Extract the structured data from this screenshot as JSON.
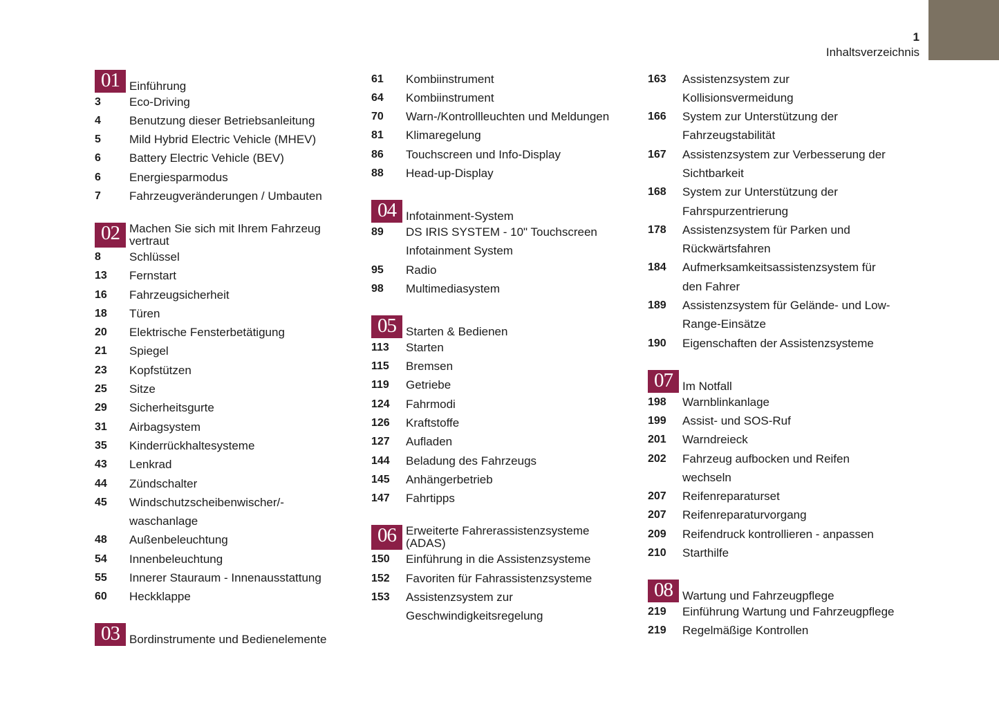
{
  "header": {
    "page_number": "1",
    "title": "Inhaltsverzeichnis",
    "tab_color": "#7c7262"
  },
  "accent_color": "#8b1f47",
  "columns": [
    [
      {
        "number": "01",
        "title": "Einführung",
        "items": [
          {
            "page": "3",
            "text": "Eco-Driving"
          },
          {
            "page": "4",
            "text": "Benutzung dieser Betriebsanleitung"
          },
          {
            "page": "5",
            "text": "Mild Hybrid Electric Vehicle (MHEV)"
          },
          {
            "page": "6",
            "text": "Battery Electric Vehicle (BEV)"
          },
          {
            "page": "6",
            "text": "Energiesparmodus"
          },
          {
            "page": "7",
            "text": "Fahrzeugveränderungen / Umbauten"
          }
        ]
      },
      {
        "number": "02",
        "title": "Machen Sie sich mit Ihrem Fahrzeug\nvertraut",
        "items": [
          {
            "page": "8",
            "text": "Schlüssel"
          },
          {
            "page": "13",
            "text": "Fernstart"
          },
          {
            "page": "16",
            "text": "Fahrzeugsicherheit"
          },
          {
            "page": "18",
            "text": "Türen"
          },
          {
            "page": "20",
            "text": "Elektrische Fensterbetätigung"
          },
          {
            "page": "21",
            "text": "Spiegel"
          },
          {
            "page": "23",
            "text": "Kopfstützen"
          },
          {
            "page": "25",
            "text": "Sitze"
          },
          {
            "page": "29",
            "text": "Sicherheitsgurte"
          },
          {
            "page": "31",
            "text": "Airbagsystem"
          },
          {
            "page": "35",
            "text": "Kinderrückhaltesysteme"
          },
          {
            "page": "43",
            "text": "Lenkrad"
          },
          {
            "page": "44",
            "text": "Zündschalter"
          },
          {
            "page": "45",
            "text": "Windschutzscheibenwischer/-\nwaschanlage"
          },
          {
            "page": "48",
            "text": "Außenbeleuchtung"
          },
          {
            "page": "54",
            "text": "Innenbeleuchtung"
          },
          {
            "page": "55",
            "text": "Innerer Stauraum - Innenausstattung"
          },
          {
            "page": "60",
            "text": "Heckklappe"
          }
        ]
      },
      {
        "number": "03",
        "title": "Bordinstrumente und Bedienelemente",
        "items": []
      }
    ],
    [
      {
        "number": "",
        "title": "",
        "items": [
          {
            "page": "61",
            "text": "Kombiinstrument"
          },
          {
            "page": "64",
            "text": "Kombiinstrument"
          },
          {
            "page": "70",
            "text": "Warn-/Kontrollleuchten und Meldungen"
          },
          {
            "page": "81",
            "text": "Klimaregelung"
          },
          {
            "page": "86",
            "text": "Touchscreen und Info-Display"
          },
          {
            "page": "88",
            "text": "Head-up-Display"
          }
        ]
      },
      {
        "number": "04",
        "title": "Infotainment-System",
        "items": [
          {
            "page": "89",
            "text": "DS IRIS SYSTEM - 10\" Touchscreen\nInfotainment System"
          },
          {
            "page": "95",
            "text": "Radio"
          },
          {
            "page": "98",
            "text": "Multimediasystem"
          }
        ]
      },
      {
        "number": "05",
        "title": "Starten & Bedienen",
        "items": [
          {
            "page": "113",
            "text": "Starten"
          },
          {
            "page": "115",
            "text": "Bremsen"
          },
          {
            "page": "119",
            "text": "Getriebe"
          },
          {
            "page": "124",
            "text": "Fahrmodi"
          },
          {
            "page": "126",
            "text": "Kraftstoffe"
          },
          {
            "page": "127",
            "text": "Aufladen"
          },
          {
            "page": "144",
            "text": "Beladung des Fahrzeugs"
          },
          {
            "page": "145",
            "text": "Anhängerbetrieb"
          },
          {
            "page": "147",
            "text": "Fahrtipps"
          }
        ]
      },
      {
        "number": "06",
        "title": "Erweiterte Fahrerassistenzsysteme\n(ADAS)",
        "items": [
          {
            "page": "150",
            "text": "Einführung in die Assistenzsysteme"
          },
          {
            "page": "152",
            "text": "Favoriten für Fahrassistenzsysteme"
          },
          {
            "page": "153",
            "text": "Assistenzsystem zur\nGeschwindigkeitsregelung"
          }
        ]
      }
    ],
    [
      {
        "number": "",
        "title": "",
        "items": [
          {
            "page": "163",
            "text": "Assistenzsystem zur\nKollisionsvermeidung"
          },
          {
            "page": "166",
            "text": "System zur Unterstützung der\nFahrzeugstabilität"
          },
          {
            "page": "167",
            "text": "Assistenzsystem zur Verbesserung der\nSichtbarkeit"
          },
          {
            "page": "168",
            "text": "System zur Unterstützung der\nFahrspurzentrierung"
          },
          {
            "page": "178",
            "text": "Assistenzsystem für Parken und\nRückwärtsfahren"
          },
          {
            "page": "184",
            "text": "Aufmerksamkeitsassistenzsystem für\nden Fahrer"
          },
          {
            "page": "189",
            "text": "Assistenzsystem für Gelände- und Low-\nRange-Einsätze"
          },
          {
            "page": "190",
            "text": "Eigenschaften der Assistenzsysteme"
          }
        ]
      },
      {
        "number": "07",
        "title": "Im Notfall",
        "items": [
          {
            "page": "198",
            "text": "Warnblinkanlage"
          },
          {
            "page": "199",
            "text": "Assist- und SOS-Ruf"
          },
          {
            "page": "201",
            "text": "Warndreieck"
          },
          {
            "page": "202",
            "text": "Fahrzeug aufbocken und Reifen\nwechseln"
          },
          {
            "page": "207",
            "text": "Reifenreparaturset"
          },
          {
            "page": "207",
            "text": "Reifenreparaturvorgang"
          },
          {
            "page": "209",
            "text": "Reifendruck kontrollieren - anpassen"
          },
          {
            "page": "210",
            "text": "Starthilfe"
          }
        ]
      },
      {
        "number": "08",
        "title": "Wartung und Fahrzeugpflege",
        "items": [
          {
            "page": "219",
            "text": "Einführung Wartung und Fahrzeugpflege"
          },
          {
            "page": "219",
            "text": "Regelmäßige Kontrollen"
          }
        ]
      }
    ]
  ]
}
